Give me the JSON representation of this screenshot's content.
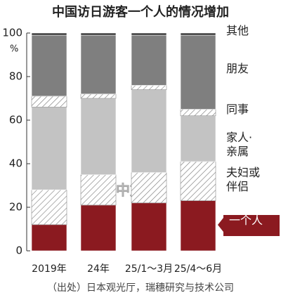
{
  "chart_data": {
    "type": "stacked_bar",
    "title": "中国访日游客一个人的情况增加",
    "y_unit": "%",
    "categories": [
      "2019年",
      "24年",
      "25/1～3月",
      "25/4～6月"
    ],
    "series": [
      {
        "name": "一个人",
        "color": "#8b1a20",
        "hatch": false,
        "values": [
          12,
          21,
          22,
          23
        ]
      },
      {
        "name": "夫妇或伴侣",
        "color": "#ffffff",
        "hatch": true,
        "values": [
          16,
          14,
          14,
          18
        ]
      },
      {
        "name": "家人·亲属",
        "color": "#c3c3c3",
        "hatch": false,
        "values": [
          38,
          35,
          38,
          21
        ]
      },
      {
        "name": "同事",
        "color": "#ffffff",
        "hatch": true,
        "values": [
          5,
          2,
          2,
          3
        ]
      },
      {
        "name": "朋友",
        "color": "#7f7f7f",
        "hatch": false,
        "values": [
          28,
          27,
          23,
          34
        ]
      },
      {
        "name": "其他",
        "color": "#3a3a3a",
        "hatch": false,
        "values": [
          1,
          1,
          1,
          1
        ]
      }
    ],
    "ylim": [
      0,
      100
    ],
    "yticks": [
      0,
      20,
      40,
      60,
      80,
      100
    ],
    "watermark": "中文网",
    "source": "（出处）日本观光厅，瑞穗研究与技术公司"
  }
}
